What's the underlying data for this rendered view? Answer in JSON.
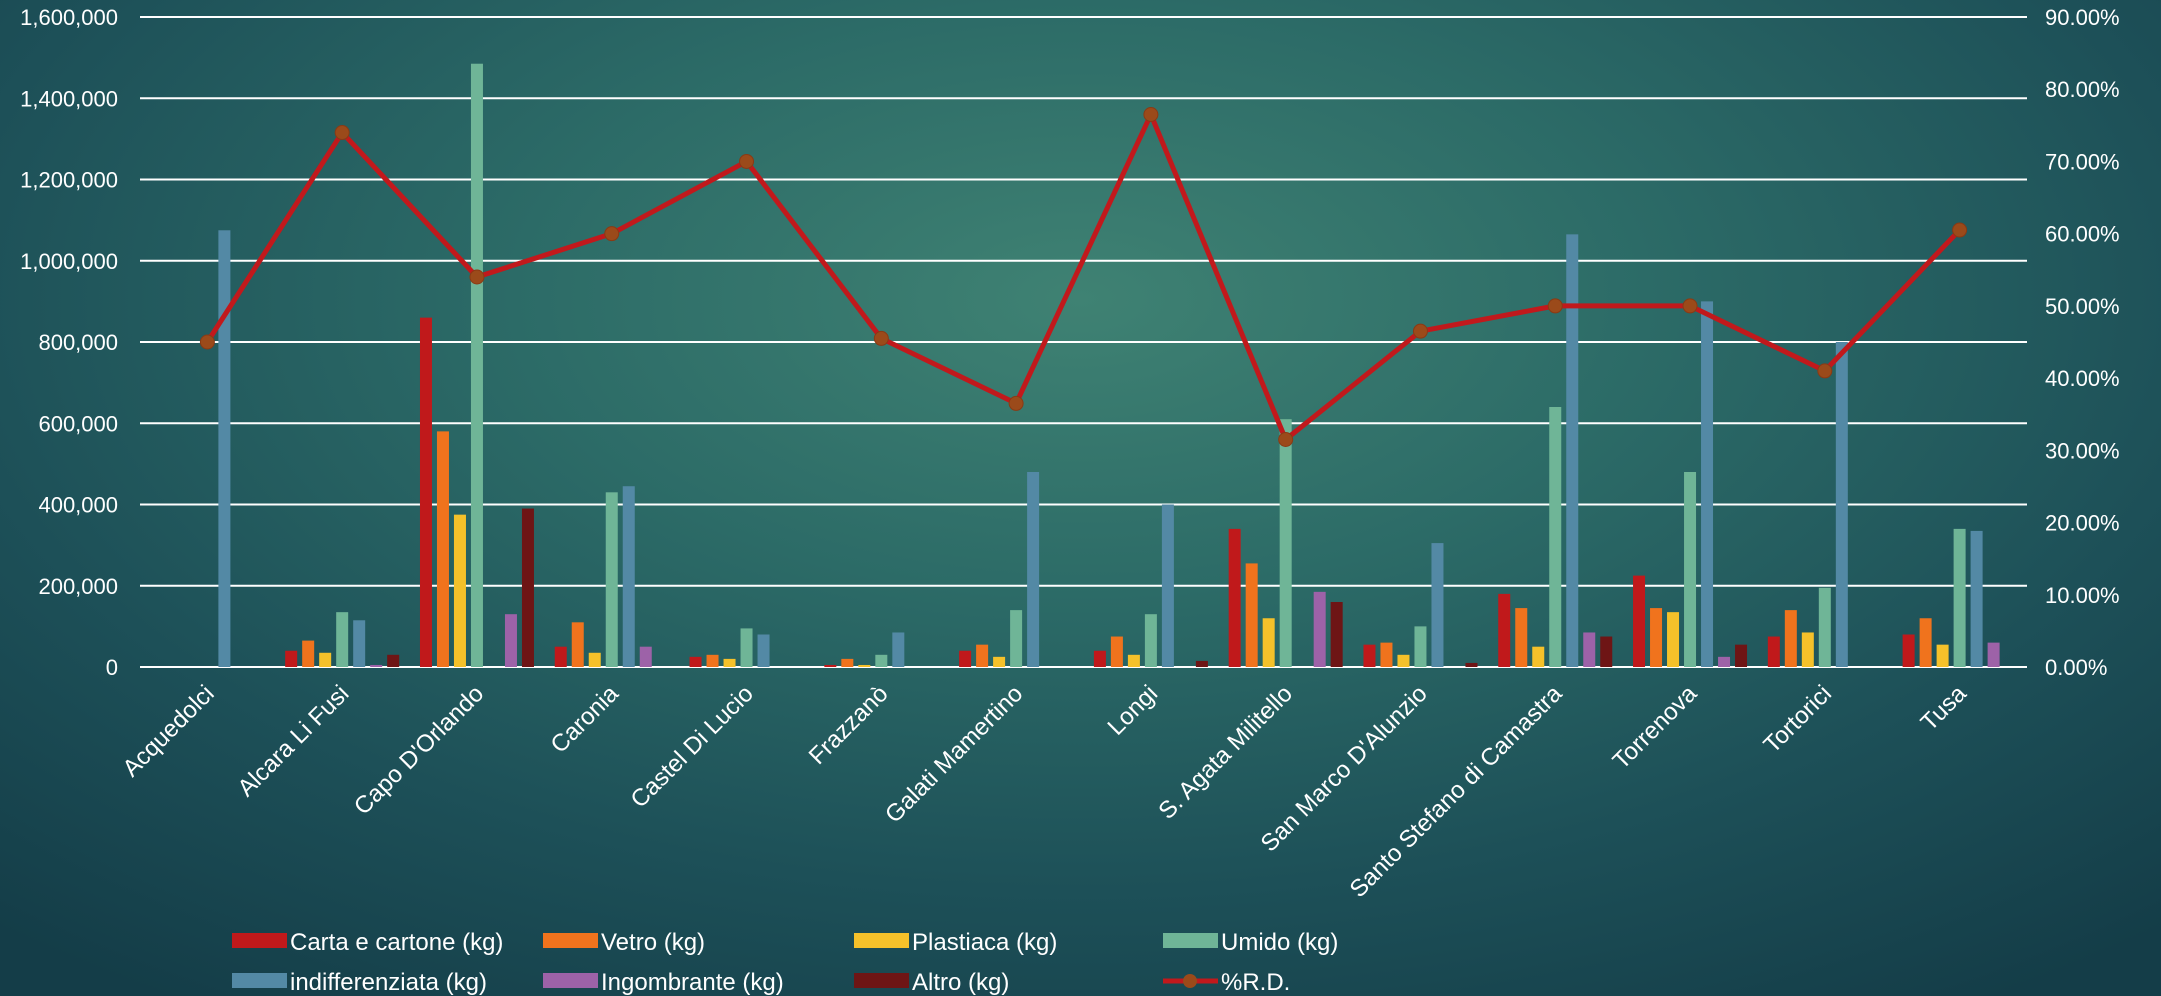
{
  "chart_data": {
    "type": "bar",
    "categories": [
      "Acquedolci",
      "Alcara Li Fusi",
      "Capo D'Orlando",
      "Caronia",
      "Castel Di Lucio",
      "Frazzanò",
      "Galati Mamertino",
      "Longi",
      "S. Agata Militello",
      "San Marco D'Alunzio",
      "Santo Stefano di Camastra",
      "Torrenova",
      "Tortorici",
      "Tusa"
    ],
    "series": [
      {
        "name": "Carta e cartone (kg)",
        "color": "#c0191b",
        "values": [
          0,
          40000,
          860000,
          50000,
          25000,
          5000,
          40000,
          40000,
          340000,
          55000,
          180000,
          225000,
          75000,
          80000
        ]
      },
      {
        "name": "Vetro (kg)",
        "color": "#f0731d",
        "values": [
          0,
          65000,
          580000,
          110000,
          30000,
          20000,
          55000,
          75000,
          255000,
          60000,
          145000,
          145000,
          140000,
          120000
        ]
      },
      {
        "name": "Plastiaca (kg)",
        "color": "#f5c12a",
        "values": [
          0,
          35000,
          375000,
          35000,
          20000,
          5000,
          25000,
          30000,
          120000,
          30000,
          50000,
          135000,
          85000,
          55000
        ]
      },
      {
        "name": "Umido (kg)",
        "color": "#6fb597",
        "values": [
          0,
          135000,
          1485000,
          430000,
          95000,
          30000,
          140000,
          130000,
          610000,
          100000,
          640000,
          480000,
          195000,
          340000
        ]
      },
      {
        "name": "indifferenziata (kg)",
        "color": "#5389a5",
        "values": [
          1075000,
          115000,
          0,
          445000,
          80000,
          85000,
          480000,
          400000,
          0,
          305000,
          1065000,
          900000,
          800000,
          335000
        ]
      },
      {
        "name": "Ingombrante (kg)",
        "color": "#9d62a8",
        "values": [
          0,
          5000,
          130000,
          50000,
          0,
          0,
          0,
          0,
          185000,
          0,
          85000,
          25000,
          0,
          60000
        ]
      },
      {
        "name": "Altro (kg)",
        "color": "#6e1515",
        "values": [
          0,
          30000,
          390000,
          0,
          0,
          0,
          0,
          15000,
          160000,
          10000,
          75000,
          55000,
          0,
          0
        ]
      }
    ],
    "line_series": {
      "name": "%R.D.",
      "color": "#c1191c",
      "marker_color": "#9b4a1a",
      "values": [
        45.0,
        74.0,
        54.0,
        60.0,
        70.0,
        45.5,
        36.5,
        76.5,
        31.5,
        46.5,
        50.0,
        50.0,
        41.0,
        60.5
      ]
    },
    "y_left": {
      "min": 0,
      "max": 1600000,
      "ticks": [
        "0",
        "200,000",
        "400,000",
        "600,000",
        "800,000",
        "1,000,000",
        "1,200,000",
        "1,400,000",
        "1,600,000"
      ]
    },
    "y_right": {
      "min": 0,
      "max": 90,
      "ticks": [
        "0.00%",
        "10.00%",
        "20.00%",
        "30.00%",
        "40.00%",
        "50.00%",
        "60.00%",
        "70.00%",
        "80.00%",
        "90.00%"
      ]
    },
    "grid": true,
    "legend_position": "bottom"
  }
}
